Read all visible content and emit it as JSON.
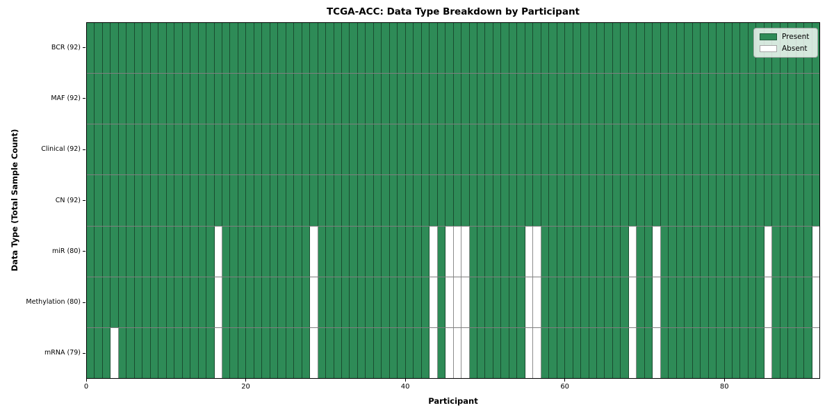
{
  "title": "TCGA-ACC: Data Type Breakdown by Participant",
  "colors": {
    "present": "#2e8b57",
    "absent": "#ffffff",
    "cell_edge": "rgba(0,0,0,0.45)",
    "plot_border": "#000000"
  },
  "legend": {
    "present_label": "Present",
    "absent_label": "Absent"
  },
  "chart_data": {
    "type": "heatmap",
    "title": "TCGA-ACC: Data Type Breakdown by Participant",
    "xlabel": "Participant",
    "ylabel": "Data Type (Total Sample Count)",
    "legend_entries": [
      "Present",
      "Absent"
    ],
    "legend_position": "upper right",
    "grid": false,
    "x_range": [
      0,
      92
    ],
    "n_participants": 92,
    "x_ticks": [
      0,
      20,
      40,
      60,
      80
    ],
    "rows": [
      {
        "label": "BCR (92)",
        "data_type": "BCR",
        "present_count": 92,
        "absent_participants": []
      },
      {
        "label": "MAF (92)",
        "data_type": "MAF",
        "present_count": 92,
        "absent_participants": []
      },
      {
        "label": "Clinical (92)",
        "data_type": "Clinical",
        "present_count": 92,
        "absent_participants": []
      },
      {
        "label": "CN (92)",
        "data_type": "CN",
        "present_count": 92,
        "absent_participants": []
      },
      {
        "label": "miR (80)",
        "data_type": "miR",
        "present_count": 80,
        "absent_participants": [
          16,
          28,
          43,
          45,
          46,
          47,
          55,
          56,
          68,
          71,
          85,
          91
        ]
      },
      {
        "label": "Methylation (80)",
        "data_type": "Methylation",
        "present_count": 80,
        "absent_participants": [
          16,
          28,
          43,
          45,
          46,
          47,
          55,
          56,
          68,
          71,
          85,
          91
        ]
      },
      {
        "label": "mRNA (79)",
        "data_type": "mRNA",
        "present_count": 79,
        "absent_participants": [
          3,
          16,
          28,
          43,
          45,
          46,
          47,
          55,
          56,
          68,
          71,
          85,
          91
        ]
      }
    ]
  }
}
